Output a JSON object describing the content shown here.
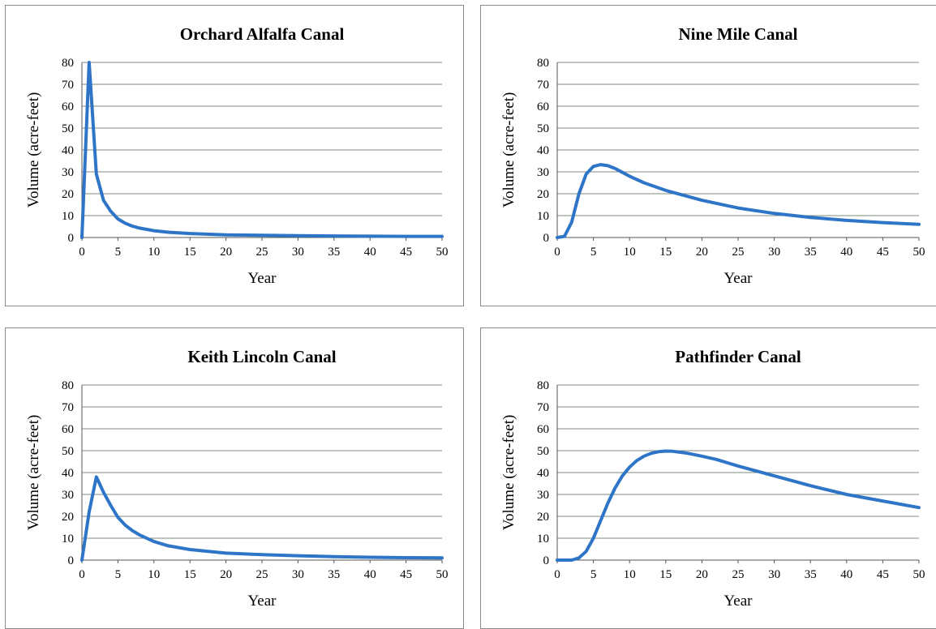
{
  "chart_data": [
    {
      "type": "line",
      "title": "Orchard Alfalfa Canal",
      "xlabel": "Year",
      "ylabel": "Volume (acre-feet)",
      "xlim": [
        0,
        50
      ],
      "ylim": [
        0,
        80
      ],
      "x_ticks": [
        "0",
        "5",
        "10",
        "15",
        "20",
        "25",
        "30",
        "35",
        "40",
        "45",
        "50"
      ],
      "y_ticks": [
        "0",
        "10",
        "20",
        "30",
        "40",
        "50",
        "60",
        "70",
        "80"
      ],
      "grid": "horizontal",
      "legend": "none",
      "series": [
        {
          "color": "#2e75c8",
          "x": [
            0,
            1,
            2,
            3,
            4,
            5,
            6,
            7,
            8,
            10,
            12,
            15,
            20,
            25,
            30,
            35,
            40,
            45,
            50
          ],
          "y": [
            0,
            80,
            29,
            17,
            12,
            8.5,
            6.5,
            5.2,
            4.3,
            3.1,
            2.4,
            1.8,
            1.2,
            1.0,
            0.8,
            0.7,
            0.6,
            0.5,
            0.5
          ]
        }
      ]
    },
    {
      "type": "line",
      "title": "Nine Mile Canal",
      "xlabel": "Year",
      "ylabel": "Volume (acre-feet)",
      "xlim": [
        0,
        50
      ],
      "ylim": [
        0,
        80
      ],
      "x_ticks": [
        "0",
        "5",
        "10",
        "15",
        "20",
        "25",
        "30",
        "35",
        "40",
        "45",
        "50"
      ],
      "y_ticks": [
        "0",
        "10",
        "20",
        "30",
        "40",
        "50",
        "60",
        "70",
        "80"
      ],
      "grid": "horizontal",
      "legend": "none",
      "series": [
        {
          "color": "#2e75c8",
          "x": [
            0,
            1,
            2,
            3,
            4,
            5,
            6,
            7,
            8,
            10,
            12,
            15,
            20,
            25,
            30,
            35,
            40,
            45,
            50
          ],
          "y": [
            0,
            0.5,
            7,
            20,
            29,
            32.5,
            33.3,
            32.8,
            31.5,
            28,
            25,
            21.5,
            17,
            13.5,
            11,
            9.2,
            7.8,
            6.8,
            6
          ]
        }
      ]
    },
    {
      "type": "line",
      "title": "Keith Lincoln Canal",
      "xlabel": "Year",
      "ylabel": "Volume (acre-feet)",
      "xlim": [
        0,
        50
      ],
      "ylim": [
        0,
        80
      ],
      "x_ticks": [
        "0",
        "5",
        "10",
        "15",
        "20",
        "25",
        "30",
        "35",
        "40",
        "45",
        "50"
      ],
      "y_ticks": [
        "0",
        "10",
        "20",
        "30",
        "40",
        "50",
        "60",
        "70",
        "80"
      ],
      "grid": "horizontal",
      "legend": "none",
      "series": [
        {
          "color": "#2e75c8",
          "x": [
            0,
            1,
            2,
            3,
            4,
            5,
            6,
            7,
            8,
            10,
            12,
            15,
            20,
            25,
            30,
            35,
            40,
            45,
            50
          ],
          "y": [
            0,
            22,
            38,
            31,
            25,
            19.5,
            16,
            13.5,
            11.5,
            8.5,
            6.5,
            4.8,
            3.2,
            2.5,
            2.0,
            1.6,
            1.3,
            1.1,
            1.0
          ]
        }
      ]
    },
    {
      "type": "line",
      "title": "Pathfinder Canal",
      "xlabel": "Year",
      "ylabel": "Volume (acre-feet)",
      "xlim": [
        0,
        50
      ],
      "ylim": [
        0,
        80
      ],
      "x_ticks": [
        "0",
        "5",
        "10",
        "15",
        "20",
        "25",
        "30",
        "35",
        "40",
        "45",
        "50"
      ],
      "y_ticks": [
        "0",
        "10",
        "20",
        "30",
        "40",
        "50",
        "60",
        "70",
        "80"
      ],
      "grid": "horizontal",
      "legend": "none",
      "series": [
        {
          "color": "#2e75c8",
          "x": [
            0,
            1,
            2,
            3,
            4,
            5,
            6,
            7,
            8,
            9,
            10,
            11,
            12,
            13,
            14,
            15,
            16,
            18,
            20,
            22,
            25,
            30,
            35,
            40,
            45,
            50
          ],
          "y": [
            0,
            0,
            0,
            1,
            4,
            10,
            18,
            26,
            33,
            38.5,
            42.5,
            45.5,
            47.5,
            48.8,
            49.5,
            49.8,
            49.7,
            48.8,
            47.5,
            46,
            43,
            38.5,
            34,
            30,
            27,
            24
          ]
        }
      ]
    }
  ]
}
